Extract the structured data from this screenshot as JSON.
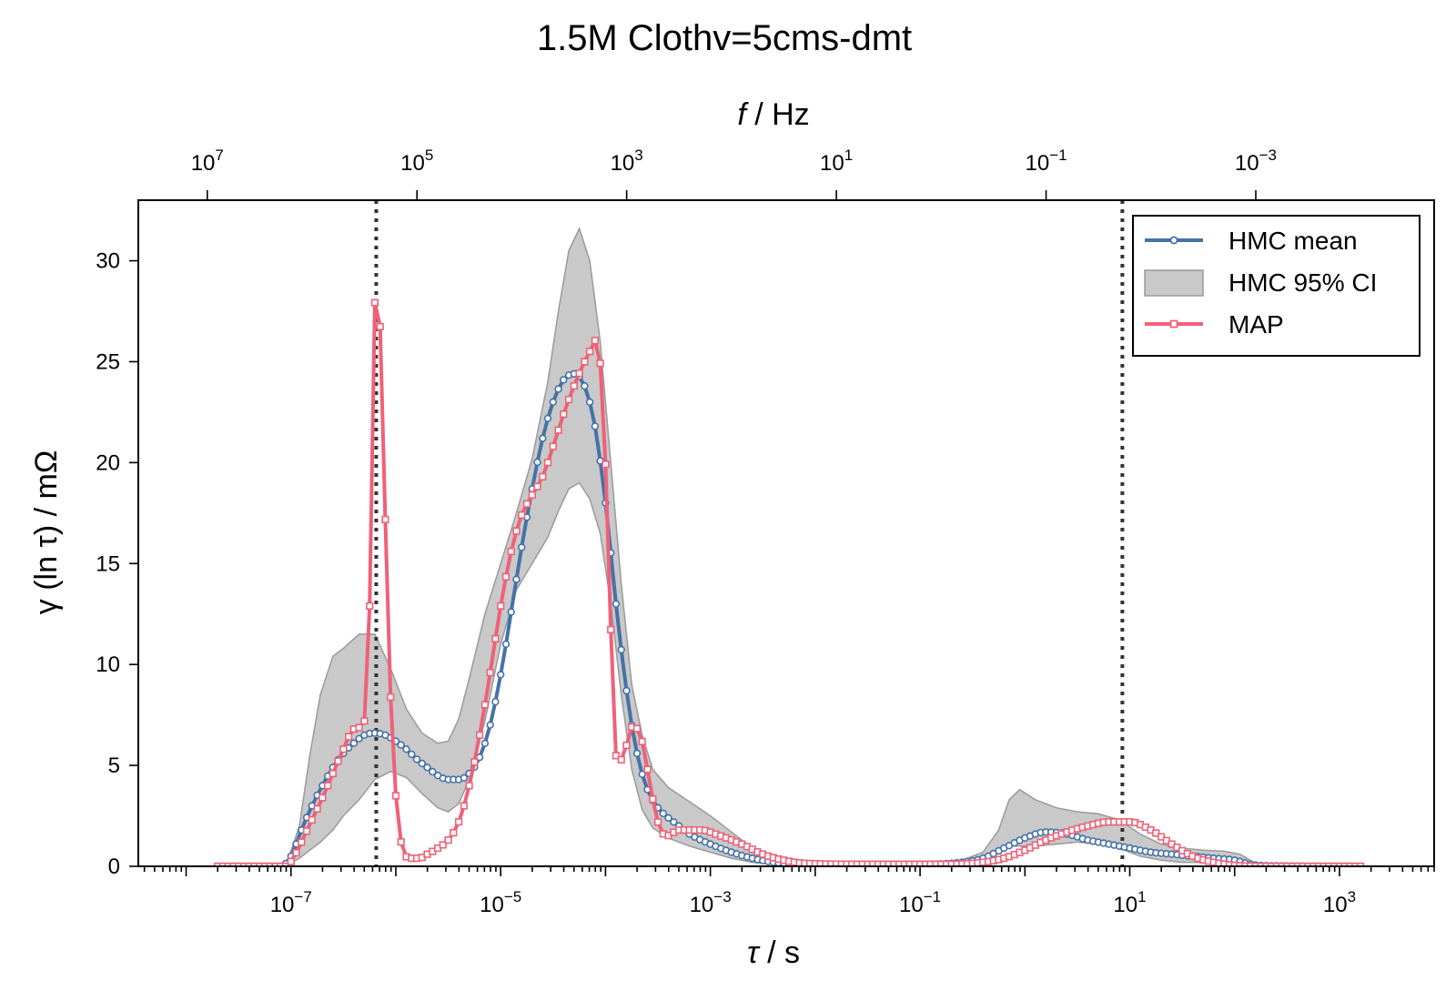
{
  "chart_data": {
    "type": "line",
    "title": "1.5M Clothv=5cms-dmt",
    "xlabel": {
      "sym": "τ",
      "unit": " / s"
    },
    "x2label": {
      "sym": "f",
      "unit": " / Hz"
    },
    "ylabel": "γ (ln τ) / mΩ",
    "xscale": "log",
    "xlim": [
      3.5e-09,
      8000
    ],
    "ylim": [
      0,
      33
    ],
    "x_ticks": [
      {
        "value": 1e-07,
        "base": "10",
        "exp": "−7"
      },
      {
        "value": 1e-05,
        "base": "10",
        "exp": "−5"
      },
      {
        "value": 0.001,
        "base": "10",
        "exp": "−3"
      },
      {
        "value": 0.1,
        "base": "10",
        "exp": "−1"
      },
      {
        "value": 10,
        "base": "10",
        "exp": "1"
      },
      {
        "value": 1000,
        "base": "10",
        "exp": "3"
      }
    ],
    "x2_ticks": [
      {
        "value": 10000000.0,
        "base": "10",
        "exp": "7"
      },
      {
        "value": 100000.0,
        "base": "10",
        "exp": "5"
      },
      {
        "value": 1000.0,
        "base": "10",
        "exp": "3"
      },
      {
        "value": 10,
        "base": "10",
        "exp": "1"
      },
      {
        "value": 0.1,
        "base": "10",
        "exp": "−1"
      },
      {
        "value": 0.001,
        "base": "10",
        "exp": "−3"
      }
    ],
    "y_ticks": [
      0,
      5,
      10,
      15,
      20,
      25,
      30
    ],
    "vlines": [
      6.5e-07,
      8.5
    ],
    "legend": {
      "placement": "top-right",
      "entries": [
        "HMC mean",
        "HMC 95% CI",
        "MAP"
      ]
    },
    "colors": {
      "hmc_mean": "#4572a7",
      "ci_fill": "#c9c9c9",
      "ci_edge": "#9a9a9a",
      "map": "#ef6177",
      "vline": "#333333"
    },
    "ci_band": {
      "name": "HMC 95% CI",
      "points": [
        [
          -7.05,
          0,
          0
        ],
        [
          -6.92,
          2.0,
          0.4
        ],
        [
          -6.82,
          5.5,
          0.8
        ],
        [
          -6.72,
          8.5,
          1.2
        ],
        [
          -6.6,
          10.4,
          1.8
        ],
        [
          -6.5,
          10.8,
          2.5
        ],
        [
          -6.35,
          11.5,
          3.3
        ],
        [
          -6.2,
          11.5,
          4.3
        ],
        [
          -6.05,
          9.8,
          4.7
        ],
        [
          -5.9,
          7.8,
          4.4
        ],
        [
          -5.75,
          6.6,
          3.6
        ],
        [
          -5.6,
          6.1,
          2.9
        ],
        [
          -5.5,
          6.2,
          2.7
        ],
        [
          -5.4,
          7.3,
          3.1
        ],
        [
          -5.3,
          9.3,
          4.3
        ],
        [
          -5.15,
          12.5,
          7.2
        ],
        [
          -5.0,
          15.0,
          11.0
        ],
        [
          -4.85,
          17.5,
          13.7
        ],
        [
          -4.7,
          20.2,
          15.0
        ],
        [
          -4.55,
          24.0,
          16.3
        ],
        [
          -4.45,
          27.5,
          17.6
        ],
        [
          -4.35,
          30.5,
          18.7
        ],
        [
          -4.25,
          31.6,
          19.0
        ],
        [
          -4.15,
          30.0,
          18.2
        ],
        [
          -4.05,
          26.0,
          16.5
        ],
        [
          -3.95,
          20.0,
          13.0
        ],
        [
          -3.85,
          14.0,
          8.5
        ],
        [
          -3.75,
          9.0,
          4.8
        ],
        [
          -3.65,
          6.5,
          2.8
        ],
        [
          -3.55,
          4.8,
          1.9
        ],
        [
          -3.4,
          3.9,
          1.4
        ],
        [
          -3.2,
          3.2,
          1.0
        ],
        [
          -3.0,
          2.5,
          0.7
        ],
        [
          -2.8,
          1.7,
          0.4
        ],
        [
          -2.6,
          0.9,
          0.2
        ],
        [
          -2.4,
          0.5,
          0.1
        ],
        [
          -2.2,
          0.3,
          0.05
        ],
        [
          -2.0,
          0.25,
          0.03
        ],
        [
          -1.5,
          0.2,
          0.02
        ],
        [
          -1.0,
          0.2,
          0.02
        ],
        [
          -0.6,
          0.3,
          0.05
        ],
        [
          -0.4,
          0.7,
          0.2
        ],
        [
          -0.25,
          1.8,
          0.7
        ],
        [
          -0.15,
          3.3,
          1.0
        ],
        [
          -0.05,
          3.8,
          1.0
        ],
        [
          0.1,
          3.3,
          1.0
        ],
        [
          0.3,
          2.9,
          1.1
        ],
        [
          0.5,
          2.7,
          1.2
        ],
        [
          0.7,
          2.6,
          1.1
        ],
        [
          0.9,
          2.3,
          0.9
        ],
        [
          1.1,
          1.6,
          0.5
        ],
        [
          1.3,
          1.1,
          0.3
        ],
        [
          1.5,
          0.9,
          0.2
        ],
        [
          1.7,
          0.8,
          0.2
        ],
        [
          1.9,
          0.75,
          0.15
        ],
        [
          2.05,
          0.6,
          0.1
        ],
        [
          2.15,
          0.3,
          0.05
        ],
        [
          2.25,
          0,
          0
        ]
      ]
    },
    "series": [
      {
        "name": "HMC mean",
        "marker": "circle",
        "points": [
          [
            -7.7,
            0
          ],
          [
            -7.1,
            0
          ],
          [
            -7.0,
            0.5
          ],
          [
            -6.9,
            1.8
          ],
          [
            -6.8,
            3.0
          ],
          [
            -6.7,
            4.0
          ],
          [
            -6.6,
            4.9
          ],
          [
            -6.5,
            5.6
          ],
          [
            -6.4,
            6.1
          ],
          [
            -6.3,
            6.5
          ],
          [
            -6.2,
            6.6
          ],
          [
            -6.1,
            6.5
          ],
          [
            -6.0,
            6.2
          ],
          [
            -5.9,
            5.8
          ],
          [
            -5.8,
            5.3
          ],
          [
            -5.7,
            4.9
          ],
          [
            -5.6,
            4.5
          ],
          [
            -5.5,
            4.3
          ],
          [
            -5.4,
            4.3
          ],
          [
            -5.3,
            4.6
          ],
          [
            -5.2,
            5.4
          ],
          [
            -5.1,
            7.0
          ],
          [
            -5.0,
            9.5
          ],
          [
            -4.9,
            12.6
          ],
          [
            -4.8,
            15.8
          ],
          [
            -4.7,
            18.7
          ],
          [
            -4.6,
            21.2
          ],
          [
            -4.5,
            23.0
          ],
          [
            -4.4,
            24.1
          ],
          [
            -4.3,
            24.4
          ],
          [
            -4.2,
            23.8
          ],
          [
            -4.1,
            21.8
          ],
          [
            -4.0,
            18.0
          ],
          [
            -3.9,
            13.0
          ],
          [
            -3.8,
            8.7
          ],
          [
            -3.7,
            5.6
          ],
          [
            -3.6,
            3.8
          ],
          [
            -3.5,
            2.9
          ],
          [
            -3.4,
            2.4
          ],
          [
            -3.3,
            2.0
          ],
          [
            -3.2,
            1.6
          ],
          [
            -3.0,
            1.1
          ],
          [
            -2.8,
            0.7
          ],
          [
            -2.6,
            0.4
          ],
          [
            -2.4,
            0.2
          ],
          [
            -2.0,
            0.1
          ],
          [
            -1.0,
            0.1
          ],
          [
            -0.6,
            0.2
          ],
          [
            -0.4,
            0.4
          ],
          [
            -0.2,
            0.9
          ],
          [
            0.0,
            1.4
          ],
          [
            0.2,
            1.7
          ],
          [
            0.4,
            1.6
          ],
          [
            0.6,
            1.3
          ],
          [
            0.8,
            1.1
          ],
          [
            1.0,
            0.9
          ],
          [
            1.2,
            0.7
          ],
          [
            1.4,
            0.6
          ],
          [
            1.6,
            0.5
          ],
          [
            1.8,
            0.4
          ],
          [
            2.0,
            0.3
          ],
          [
            2.15,
            0.1
          ],
          [
            2.3,
            0.03
          ],
          [
            3.2,
            0
          ]
        ]
      },
      {
        "name": "MAP",
        "marker": "square",
        "points": [
          [
            -7.7,
            0
          ],
          [
            -7.05,
            0
          ],
          [
            -6.98,
            0.4
          ],
          [
            -6.9,
            1.2
          ],
          [
            -6.8,
            2.3
          ],
          [
            -6.7,
            3.4
          ],
          [
            -6.6,
            4.6
          ],
          [
            -6.5,
            5.8
          ],
          [
            -6.4,
            6.8
          ],
          [
            -6.3,
            7.2
          ],
          [
            -6.25,
            12.9
          ],
          [
            -6.22,
            23.6
          ],
          [
            -6.18,
            29.7
          ],
          [
            -6.13,
            23.3
          ],
          [
            -6.07,
            11.2
          ],
          [
            -6.0,
            3.5
          ],
          [
            -5.93,
            0.8
          ],
          [
            -5.86,
            0.4
          ],
          [
            -5.78,
            0.4
          ],
          [
            -5.7,
            0.6
          ],
          [
            -5.6,
            0.9
          ],
          [
            -5.5,
            1.3
          ],
          [
            -5.4,
            2.2
          ],
          [
            -5.3,
            4.0
          ],
          [
            -5.2,
            6.5
          ],
          [
            -5.1,
            9.6
          ],
          [
            -5.0,
            12.9
          ],
          [
            -4.9,
            15.6
          ],
          [
            -4.8,
            17.4
          ],
          [
            -4.7,
            18.4
          ],
          [
            -4.6,
            19.3
          ],
          [
            -4.5,
            20.8
          ],
          [
            -4.4,
            22.4
          ],
          [
            -4.3,
            23.8
          ],
          [
            -4.2,
            25.0
          ],
          [
            -4.12,
            25.8
          ],
          [
            -4.08,
            26.2
          ],
          [
            -4.03,
            23.2
          ],
          [
            -3.97,
            15.7
          ],
          [
            -3.92,
            6.5
          ],
          [
            -3.87,
            5.2
          ],
          [
            -3.82,
            5.6
          ],
          [
            -3.75,
            6.9
          ],
          [
            -3.68,
            6.7
          ],
          [
            -3.6,
            4.8
          ],
          [
            -3.53,
            2.8
          ],
          [
            -3.48,
            1.9
          ],
          [
            -3.42,
            1.5
          ],
          [
            -3.3,
            1.8
          ],
          [
            -3.1,
            1.8
          ],
          [
            -2.9,
            1.5
          ],
          [
            -2.7,
            1.1
          ],
          [
            -2.5,
            0.6
          ],
          [
            -2.3,
            0.3
          ],
          [
            -2.1,
            0.15
          ],
          [
            -1.5,
            0.1
          ],
          [
            -0.8,
            0.1
          ],
          [
            -0.4,
            0.2
          ],
          [
            -0.2,
            0.4
          ],
          [
            0.0,
            0.8
          ],
          [
            0.2,
            1.3
          ],
          [
            0.4,
            1.7
          ],
          [
            0.6,
            2.0
          ],
          [
            0.8,
            2.2
          ],
          [
            1.0,
            2.2
          ],
          [
            1.2,
            1.8
          ],
          [
            1.4,
            1.1
          ],
          [
            1.6,
            0.5
          ],
          [
            1.8,
            0.2
          ],
          [
            2.0,
            0.05
          ],
          [
            2.3,
            0
          ],
          [
            3.2,
            0
          ]
        ]
      }
    ]
  }
}
